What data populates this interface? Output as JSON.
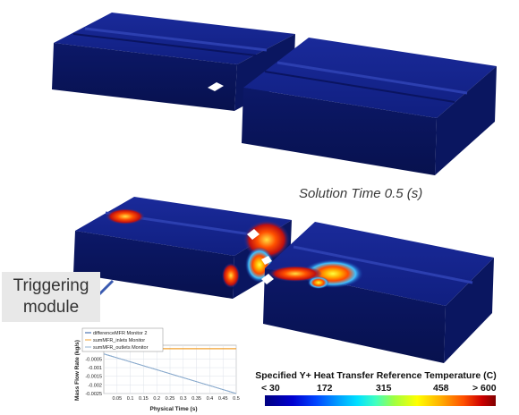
{
  "solution_time_label": "Solution Time 0.5 (s)",
  "triggering_module_label": [
    "Triggering",
    "module"
  ],
  "colorbar": {
    "title": "Specified Y+ Heat Transfer Reference Temperature (C)",
    "tick_labels": [
      "< 30",
      "172",
      "315",
      "458",
      "> 600"
    ],
    "colors": [
      "#000080",
      "#0044ff",
      "#00e0ff",
      "#a0ff40",
      "#ffff00",
      "#ff5000",
      "#800000"
    ]
  },
  "mini_chart": {
    "chart_data": {
      "type": "line",
      "xlabel": "Physical Time (s)",
      "ylabel": "Mass Flow Rate (kg/s)",
      "x_ticks": [
        "0.05",
        "0.1",
        "0.15",
        "0.2",
        "0.25",
        "0.3",
        "0.35",
        "0.4",
        "0.45",
        "0.5"
      ],
      "y_ticks": [
        "-0.0005",
        "-0.001",
        "-0.0015",
        "-0.002",
        "-0.0025"
      ],
      "xlim": [
        0,
        0.5
      ],
      "ylim": [
        -0.0025,
        0.0003
      ],
      "series": [
        {
          "name": "differenceMFR Monitor 2",
          "color": "#2a5aa0",
          "x": [
            0,
            0.5
          ],
          "y": [
            -0.0002,
            -0.0025
          ]
        },
        {
          "name": "sumMFR_inlets Monitor",
          "color": "#f0a030",
          "x": [
            0,
            0.5
          ],
          "y": [
            0.0001,
            0.0001
          ]
        },
        {
          "name": "sumMFR_outlets Monitor",
          "color": "#8fb0d0",
          "x": [
            0,
            0.5
          ],
          "y": [
            -0.0002,
            -0.0025
          ]
        }
      ],
      "grid": true,
      "legend": "top-left"
    }
  }
}
